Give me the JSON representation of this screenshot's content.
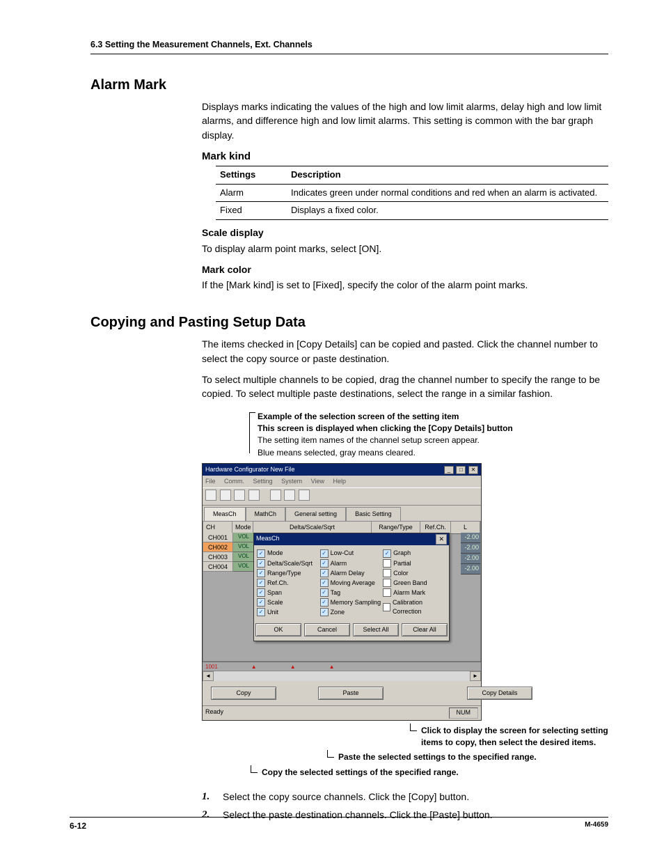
{
  "header": {
    "running": "6.3  Setting the Measurement Channels, Ext. Channels"
  },
  "alarm_mark": {
    "title": "Alarm Mark",
    "intro": "Displays marks indicating the values of the high and low limit alarms, delay high and low limit alarms, and difference high and low limit alarms.  This setting is common with the bar graph display.",
    "mark_kind": {
      "title": "Mark kind",
      "columns": [
        "Settings",
        "Description"
      ],
      "rows": [
        [
          "Alarm",
          "Indicates green under normal conditions and red when an alarm is activated."
        ],
        [
          "Fixed",
          "Displays a fixed color."
        ]
      ]
    },
    "scale_display": {
      "title": "Scale display",
      "text": "To display alarm point marks, select [ON]."
    },
    "mark_color": {
      "title": "Mark color",
      "text": "If the [Mark kind] is set to [Fixed], specify the color of the alarm point marks."
    }
  },
  "copy_paste": {
    "title": "Copying and Pasting Setup Data",
    "p1": "The items checked in [Copy Details] can be copied and pasted.  Click the channel number to select the copy source or paste destination.",
    "p2": "To select multiple channels to be copied, drag the channel number to specify the range to be copied.  To select multiple paste destinations, select the range in a similar fashion.",
    "caption": {
      "l1": "Example of the selection screen of the setting item",
      "l2": "This screen is displayed when clicking the [Copy Details] button",
      "l3": "The setting item names of the channel setup screen appear.",
      "l4": "Blue means selected, gray means cleared."
    },
    "screenshot": {
      "window_title": "Hardware Configurator New File",
      "menu": [
        "File",
        "Comm.",
        "Setting",
        "System",
        "View",
        "Help"
      ],
      "tabs": [
        "MeasCh",
        "MathCh",
        "General setting",
        "Basic Setting"
      ],
      "grid_headers": {
        "ch": "CH",
        "mode": "Mode",
        "delta": "Delta/Scale/Sqrt",
        "range": "Range/Type",
        "ref": "Ref.Ch.",
        "l": "L"
      },
      "rows": [
        {
          "ch": "CH001",
          "mode": "VOL",
          "sel": false
        },
        {
          "ch": "CH002",
          "mode": "VOL",
          "sel": true
        },
        {
          "ch": "CH003",
          "mode": "VOL",
          "sel": false
        },
        {
          "ch": "CH004",
          "mode": "VOL",
          "sel": false
        }
      ],
      "right_values": [
        "-2.00",
        "-2.00",
        "-2.00",
        "-2.00"
      ],
      "popup": {
        "title": "MeasCh",
        "close": "✕",
        "cols": [
          [
            {
              "label": "Mode",
              "on": true
            },
            {
              "label": "Delta/Scale/Sqrt",
              "on": true
            },
            {
              "label": "Range/Type",
              "on": true
            },
            {
              "label": "Ref.Ch.",
              "on": true
            },
            {
              "label": "Span",
              "on": true
            },
            {
              "label": "Scale",
              "on": true
            },
            {
              "label": "Unit",
              "on": true
            }
          ],
          [
            {
              "label": "Low-Cut",
              "on": true
            },
            {
              "label": "Alarm",
              "on": true
            },
            {
              "label": "Alarm Delay",
              "on": true
            },
            {
              "label": "Moving Average",
              "on": true
            },
            {
              "label": "Tag",
              "on": true
            },
            {
              "label": "Memory Sampling",
              "on": true
            },
            {
              "label": "Zone",
              "on": true
            }
          ],
          [
            {
              "label": "Graph",
              "on": true
            },
            {
              "label": "Partial",
              "on": false
            },
            {
              "label": "Color",
              "on": false
            },
            {
              "label": "Green Band",
              "on": false
            },
            {
              "label": "Alarm Mark",
              "on": false
            },
            {
              "label": "Calibration Correction",
              "on": false
            }
          ]
        ],
        "buttons": {
          "ok": "OK",
          "cancel": "Cancel",
          "select_all": "Select All",
          "clear_all": "Clear All"
        }
      },
      "scale_label": "1001",
      "action_buttons": {
        "copy": "Copy",
        "paste": "Paste",
        "details": "Copy Details"
      },
      "status_ready": "Ready",
      "status_num": "NUM"
    },
    "callouts": {
      "details": "Click to display the screen for selecting setting items to copy, then select the desired items.",
      "paste": "Paste the selected settings to the specified range.",
      "copy": "Copy the selected settings of the specified range."
    },
    "steps": [
      "Select the copy source channels. Click the [Copy] button.",
      "Select the paste destination channels. Click the [Paste] button."
    ]
  },
  "footer": {
    "page": "6-12",
    "doc": "M-4659"
  }
}
